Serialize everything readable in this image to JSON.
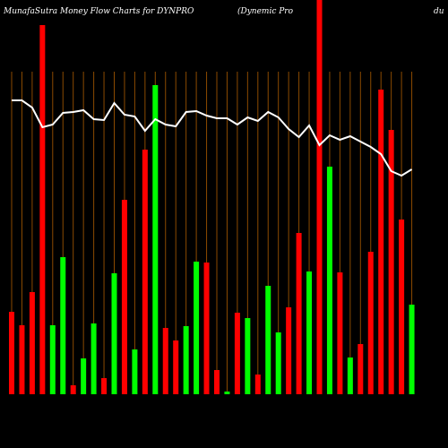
{
  "chart_data": {
    "type": "bar",
    "title": "MunafaSutra  Money Flow  Charts for DYNPRO",
    "subtitle": "(Dynemic Pro",
    "subtitle_right": "du",
    "categories": [
      null,
      null,
      null,
      null,
      null,
      null,
      null,
      null,
      null,
      null,
      null,
      null,
      null,
      null,
      null,
      null,
      null,
      null,
      null,
      null,
      null,
      null,
      null,
      null,
      null,
      null,
      null,
      null,
      null,
      null,
      null,
      null,
      null,
      null,
      null,
      null,
      null,
      null,
      null,
      null
    ],
    "values": [
      92,
      77,
      114,
      412,
      77,
      153,
      10,
      40,
      79,
      18,
      135,
      217,
      50,
      273,
      345,
      74,
      60,
      76,
      148,
      147,
      27,
      3,
      91,
      85,
      22,
      121,
      69,
      97,
      180,
      137,
      440,
      254,
      136,
      41,
      56,
      159,
      340,
      295,
      195,
      100
    ],
    "colors": [
      "#ff0000",
      "#ff0000",
      "#ff0000",
      "#ff0000",
      "#00ff00",
      "#00ff00",
      "#ff0000",
      "#00ff00",
      "#00ff00",
      "#ff0000",
      "#00ff00",
      "#ff0000",
      "#00ff00",
      "#ff0000",
      "#00ff00",
      "#ff0000",
      "#ff0000",
      "#00ff00",
      "#00ff00",
      "#ff0000",
      "#ff0000",
      "#00ff00",
      "#ff0000",
      "#00ff00",
      "#ff0000",
      "#00ff00",
      "#00ff00",
      "#ff0000",
      "#ff0000",
      "#00ff00",
      "#ff0000",
      "#00ff00",
      "#ff0000",
      "#00ff00",
      "#ff0000",
      "#ff0000",
      "#ff0000",
      "#ff0000",
      "#ff0000",
      "#00ff00"
    ],
    "line": {
      "color": "#ffffff",
      "values": [
        328,
        328,
        320,
        298,
        301,
        314,
        315,
        317,
        307,
        306,
        325,
        312,
        310,
        294,
        307,
        301,
        299,
        315,
        316,
        311,
        308,
        308,
        301,
        309,
        305,
        315,
        309,
        296,
        287,
        300,
        278,
        289,
        284,
        288,
        282,
        276,
        268,
        249,
        244,
        251
      ]
    },
    "ylim": [
      0,
      440
    ],
    "grid_color": "#8b4a00"
  }
}
